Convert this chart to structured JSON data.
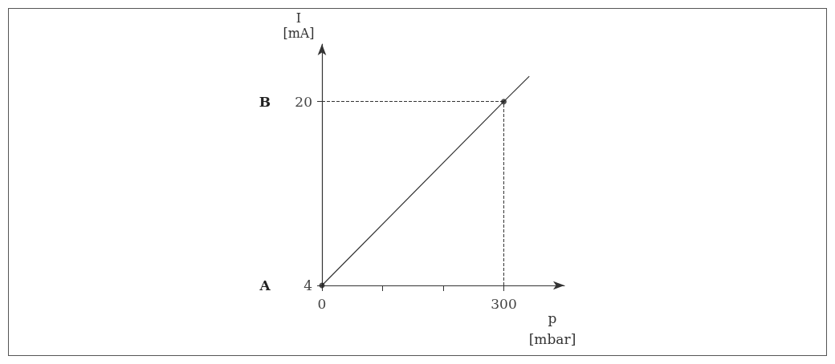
{
  "chart_data": {
    "type": "line",
    "xlabel": "p\n[mbar]",
    "ylabel": "I\n[mA]",
    "series": [
      {
        "color": "#333333",
        "marker": "none",
        "x": [
          0,
          300,
          342
        ],
        "values": [
          4,
          20,
          22.2
        ]
      },
      {
        "type": "scatter",
        "color": "#222222",
        "marker": "circle",
        "x": [
          0,
          300
        ],
        "values": [
          4,
          20
        ]
      }
    ],
    "xlim": [
      0,
      400
    ],
    "xticks": [
      0,
      {
        "value": 100,
        "label": null
      },
      {
        "value": 200,
        "label": null
      },
      300
    ],
    "ylim": [
      4,
      25
    ],
    "yticks": [
      4,
      20
    ],
    "ref_lines": [
      {
        "axis": "y",
        "value": 20,
        "line_style": "dashed"
      },
      {
        "axis": "x",
        "value": 300,
        "line_style": "dashed"
      }
    ],
    "annotations": [
      "A",
      "B"
    ],
    "grid": false
  }
}
